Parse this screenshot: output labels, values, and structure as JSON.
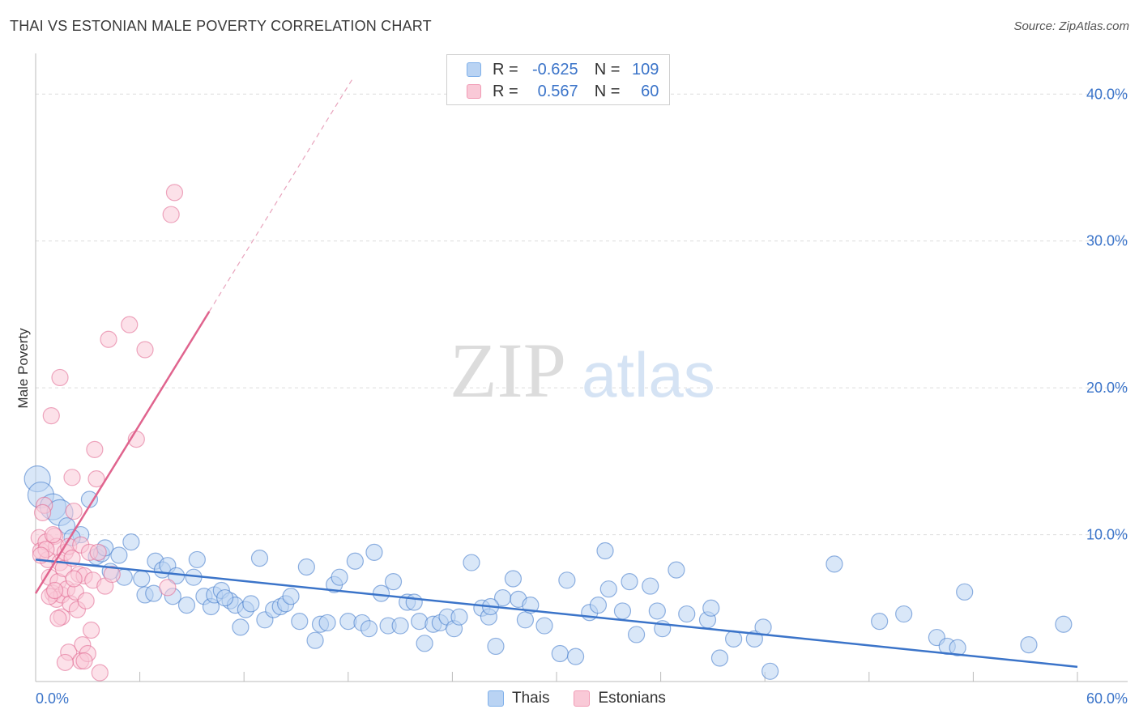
{
  "header": {
    "title": "THAI VS ESTONIAN MALE POVERTY CORRELATION CHART",
    "source": "Source: ZipAtlas.com"
  },
  "watermark": {
    "zip": "ZIP",
    "atlas": "atlas"
  },
  "legend": {
    "rows": [
      {
        "r_label": "R =",
        "r_value": "-0.625",
        "n_label": "N =",
        "n_value": "109",
        "color": "#7fb0ea",
        "fill": "#b9d3f3"
      },
      {
        "r_label": "R =",
        "r_value": "0.567",
        "n_label": "N =",
        "n_value": "60",
        "color": "#f19bb5",
        "fill": "#f9c9d7"
      }
    ]
  },
  "bottom_legend": {
    "thais": "Thais",
    "estonians": "Estonians"
  },
  "chart_data": {
    "type": "scatter",
    "title": "THAI VS ESTONIAN MALE POVERTY CORRELATION CHART",
    "xlabel": "",
    "ylabel": "Male Poverty",
    "xlim": [
      0,
      60
    ],
    "ylim": [
      0,
      42
    ],
    "x_tick_labels": [
      "0.0%",
      "60.0%"
    ],
    "y_tick_labels": [
      "10.0%",
      "20.0%",
      "30.0%",
      "40.0%"
    ],
    "y_ticks": [
      10,
      20,
      30,
      40
    ],
    "grid": true,
    "series": [
      {
        "name": "Thais",
        "color": "#3b74c9",
        "fill": "#b9d3f3",
        "trend": {
          "x0": 0,
          "y0": 8.3,
          "x1": 60,
          "y1": 1.0
        },
        "points": [
          [
            0.1,
            13.8
          ],
          [
            0.3,
            12.7
          ],
          [
            1.0,
            11.9
          ],
          [
            1.4,
            11.5
          ],
          [
            1.8,
            10.6
          ],
          [
            2.6,
            10.0
          ],
          [
            3.1,
            12.4
          ],
          [
            2.1,
            9.8
          ],
          [
            3.5,
            8.5
          ],
          [
            3.8,
            8.7
          ],
          [
            4.0,
            9.1
          ],
          [
            4.8,
            8.6
          ],
          [
            5.1,
            7.1
          ],
          [
            5.5,
            9.5
          ],
          [
            6.1,
            7.0
          ],
          [
            6.3,
            5.9
          ],
          [
            6.8,
            6.0
          ],
          [
            6.9,
            8.2
          ],
          [
            7.3,
            7.6
          ],
          [
            7.6,
            7.9
          ],
          [
            7.9,
            5.8
          ],
          [
            8.1,
            7.2
          ],
          [
            8.7,
            5.2
          ],
          [
            9.3,
            8.3
          ],
          [
            9.7,
            5.8
          ],
          [
            10.1,
            5.1
          ],
          [
            10.3,
            5.9
          ],
          [
            10.7,
            6.2
          ],
          [
            11.2,
            5.5
          ],
          [
            11.5,
            5.2
          ],
          [
            11.8,
            3.7
          ],
          [
            12.1,
            4.9
          ],
          [
            12.4,
            5.3
          ],
          [
            12.9,
            8.4
          ],
          [
            13.2,
            4.2
          ],
          [
            13.7,
            4.9
          ],
          [
            14.1,
            5.1
          ],
          [
            14.4,
            5.3
          ],
          [
            14.7,
            5.8
          ],
          [
            15.2,
            4.1
          ],
          [
            15.6,
            7.8
          ],
          [
            16.1,
            2.8
          ],
          [
            16.4,
            3.9
          ],
          [
            16.8,
            4.0
          ],
          [
            17.2,
            6.6
          ],
          [
            17.5,
            7.1
          ],
          [
            18.0,
            4.1
          ],
          [
            18.4,
            8.2
          ],
          [
            18.8,
            4.0
          ],
          [
            19.2,
            3.6
          ],
          [
            19.5,
            8.8
          ],
          [
            19.9,
            6.0
          ],
          [
            20.3,
            3.8
          ],
          [
            20.6,
            6.8
          ],
          [
            21.0,
            3.8
          ],
          [
            21.4,
            5.4
          ],
          [
            21.8,
            5.4
          ],
          [
            22.1,
            4.1
          ],
          [
            22.4,
            2.6
          ],
          [
            22.9,
            3.9
          ],
          [
            23.3,
            4.0
          ],
          [
            23.7,
            4.4
          ],
          [
            24.1,
            3.6
          ],
          [
            24.4,
            4.4
          ],
          [
            25.1,
            8.1
          ],
          [
            25.7,
            5.0
          ],
          [
            26.1,
            4.4
          ],
          [
            26.5,
            2.4
          ],
          [
            26.9,
            5.7
          ],
          [
            27.5,
            7.0
          ],
          [
            27.8,
            5.6
          ],
          [
            28.2,
            4.2
          ],
          [
            28.5,
            5.2
          ],
          [
            29.3,
            3.8
          ],
          [
            30.2,
            1.9
          ],
          [
            30.6,
            6.9
          ],
          [
            31.1,
            1.7
          ],
          [
            31.9,
            4.7
          ],
          [
            32.4,
            5.2
          ],
          [
            32.8,
            8.9
          ],
          [
            33.0,
            6.3
          ],
          [
            33.8,
            4.8
          ],
          [
            34.2,
            6.8
          ],
          [
            34.6,
            3.2
          ],
          [
            35.4,
            6.5
          ],
          [
            35.8,
            4.8
          ],
          [
            36.1,
            3.6
          ],
          [
            36.9,
            7.6
          ],
          [
            37.5,
            4.6
          ],
          [
            38.7,
            4.2
          ],
          [
            38.9,
            5.0
          ],
          [
            39.4,
            1.6
          ],
          [
            40.2,
            2.9
          ],
          [
            41.4,
            2.9
          ],
          [
            41.9,
            3.7
          ],
          [
            42.3,
            0.7
          ],
          [
            46.0,
            8.0
          ],
          [
            48.6,
            4.1
          ],
          [
            50.0,
            4.6
          ],
          [
            51.9,
            3.0
          ],
          [
            52.5,
            2.4
          ],
          [
            53.1,
            2.3
          ],
          [
            53.5,
            6.1
          ],
          [
            57.2,
            2.5
          ],
          [
            59.2,
            3.9
          ],
          [
            4.3,
            7.5
          ],
          [
            9.1,
            7.1
          ],
          [
            10.9,
            5.7
          ],
          [
            26.2,
            5.1
          ]
        ]
      },
      {
        "name": "Estonians",
        "color": "#e0648e",
        "fill": "#f9c9d7",
        "trend": {
          "x0": 0,
          "y0": 6.0,
          "x1": 10,
          "y1": 25.2
        },
        "points": [
          [
            0.2,
            9.8
          ],
          [
            0.3,
            8.9
          ],
          [
            0.5,
            12.0
          ],
          [
            0.6,
            9.5
          ],
          [
            0.7,
            8.3
          ],
          [
            0.8,
            7.1
          ],
          [
            0.9,
            18.1
          ],
          [
            1.0,
            6.0
          ],
          [
            1.1,
            9.9
          ],
          [
            1.2,
            9.2
          ],
          [
            1.2,
            5.6
          ],
          [
            1.3,
            6.8
          ],
          [
            1.4,
            8.1
          ],
          [
            1.5,
            5.9
          ],
          [
            1.5,
            4.4
          ],
          [
            1.6,
            7.7
          ],
          [
            1.7,
            8.8
          ],
          [
            1.8,
            6.3
          ],
          [
            1.9,
            9.2
          ],
          [
            1.9,
            2.0
          ],
          [
            2.0,
            5.3
          ],
          [
            2.1,
            8.4
          ],
          [
            2.1,
            13.9
          ],
          [
            2.2,
            11.6
          ],
          [
            2.3,
            6.1
          ],
          [
            2.4,
            4.9
          ],
          [
            2.5,
            7.3
          ],
          [
            2.6,
            9.3
          ],
          [
            2.6,
            1.4
          ],
          [
            2.7,
            2.5
          ],
          [
            2.8,
            7.2
          ],
          [
            2.9,
            5.5
          ],
          [
            3.0,
            1.9
          ],
          [
            3.1,
            8.8
          ],
          [
            3.2,
            3.5
          ],
          [
            3.3,
            6.9
          ],
          [
            3.4,
            15.8
          ],
          [
            3.5,
            13.8
          ],
          [
            3.6,
            8.8
          ],
          [
            3.7,
            0.6
          ],
          [
            1.4,
            20.7
          ],
          [
            4.0,
            6.5
          ],
          [
            4.2,
            23.3
          ],
          [
            4.4,
            7.3
          ],
          [
            5.4,
            24.3
          ],
          [
            5.8,
            16.5
          ],
          [
            6.3,
            22.6
          ],
          [
            7.8,
            31.8
          ],
          [
            8.0,
            33.3
          ],
          [
            7.6,
            6.4
          ],
          [
            0.4,
            11.5
          ],
          [
            0.6,
            9.0
          ],
          [
            1.0,
            10.0
          ],
          [
            0.8,
            5.8
          ],
          [
            1.3,
            4.3
          ],
          [
            1.7,
            1.3
          ],
          [
            2.8,
            1.4
          ],
          [
            0.3,
            8.6
          ],
          [
            1.1,
            6.2
          ],
          [
            2.2,
            7.0
          ]
        ]
      }
    ]
  }
}
